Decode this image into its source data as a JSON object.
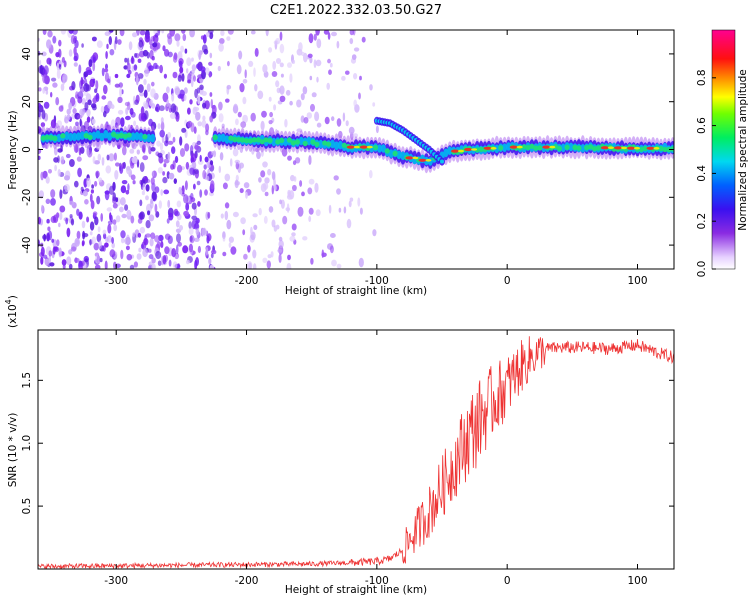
{
  "chart_data": [
    {
      "type": "heatmap",
      "title": "C2E1.2022.332.03.50.G27",
      "xlabel": "Height of straight line (km)",
      "ylabel": "Frequency (Hz)",
      "xlim": [
        -360,
        128
      ],
      "ylim": [
        -50,
        50
      ],
      "x_ticks": [
        -300,
        -200,
        -100,
        0,
        100
      ],
      "y_ticks": [
        -40,
        -20,
        0,
        20,
        40
      ],
      "colorbar": {
        "label": "Normalized spectral amplitude",
        "range": [
          0.0,
          1.0
        ],
        "ticks": [
          "0.0",
          "0.2",
          "0.4",
          "0.6",
          "0.8"
        ],
        "colormap": "rainbow (white-violet-blue-cyan-green-yellow-red-magenta)"
      },
      "ridge": {
        "description": "main signal near 0 Hz",
        "x": [
          -350,
          -300,
          -270,
          -225,
          -200,
          -150,
          -120,
          -100,
          -80,
          -60,
          -45,
          -30,
          0,
          50,
          100,
          128
        ],
        "frequency": [
          5,
          6,
          5,
          5,
          4,
          3,
          1,
          1,
          -3,
          -5,
          -1,
          0,
          1,
          1,
          0.5,
          0.5
        ]
      },
      "secondary_branch": {
        "x": [
          -100,
          -90,
          -80,
          -70,
          -60,
          -50
        ],
        "frequency": [
          12,
          11,
          8,
          4,
          0,
          -5
        ]
      }
    },
    {
      "type": "line",
      "xlabel": "Height of straight line (km)",
      "ylabel": "SNR (10 * v/v)",
      "y_multiplier": "(x10",
      "y_multiplier_exp": "4",
      "xlim": [
        -360,
        128
      ],
      "ylim": [
        0,
        1.9
      ],
      "x_ticks": [
        -300,
        -200,
        -100,
        0,
        100
      ],
      "y_ticks": [
        "0.5",
        "1.0",
        "1.5"
      ],
      "color": "#ee3333",
      "series": [
        {
          "x": [
            -360,
            -250,
            -150,
            -120,
            -100,
            -90,
            -80,
            -70,
            -60,
            -50,
            -40,
            -30,
            -20,
            -10,
            0,
            10,
            20,
            30,
            40,
            60,
            80,
            100,
            115,
            128
          ],
          "values": [
            0.02,
            0.03,
            0.04,
            0.05,
            0.06,
            0.08,
            0.15,
            0.3,
            0.45,
            0.65,
            0.85,
            1.05,
            1.2,
            1.35,
            1.45,
            1.6,
            1.7,
            1.75,
            1.76,
            1.76,
            1.75,
            1.78,
            1.72,
            1.68
          ]
        }
      ]
    }
  ]
}
